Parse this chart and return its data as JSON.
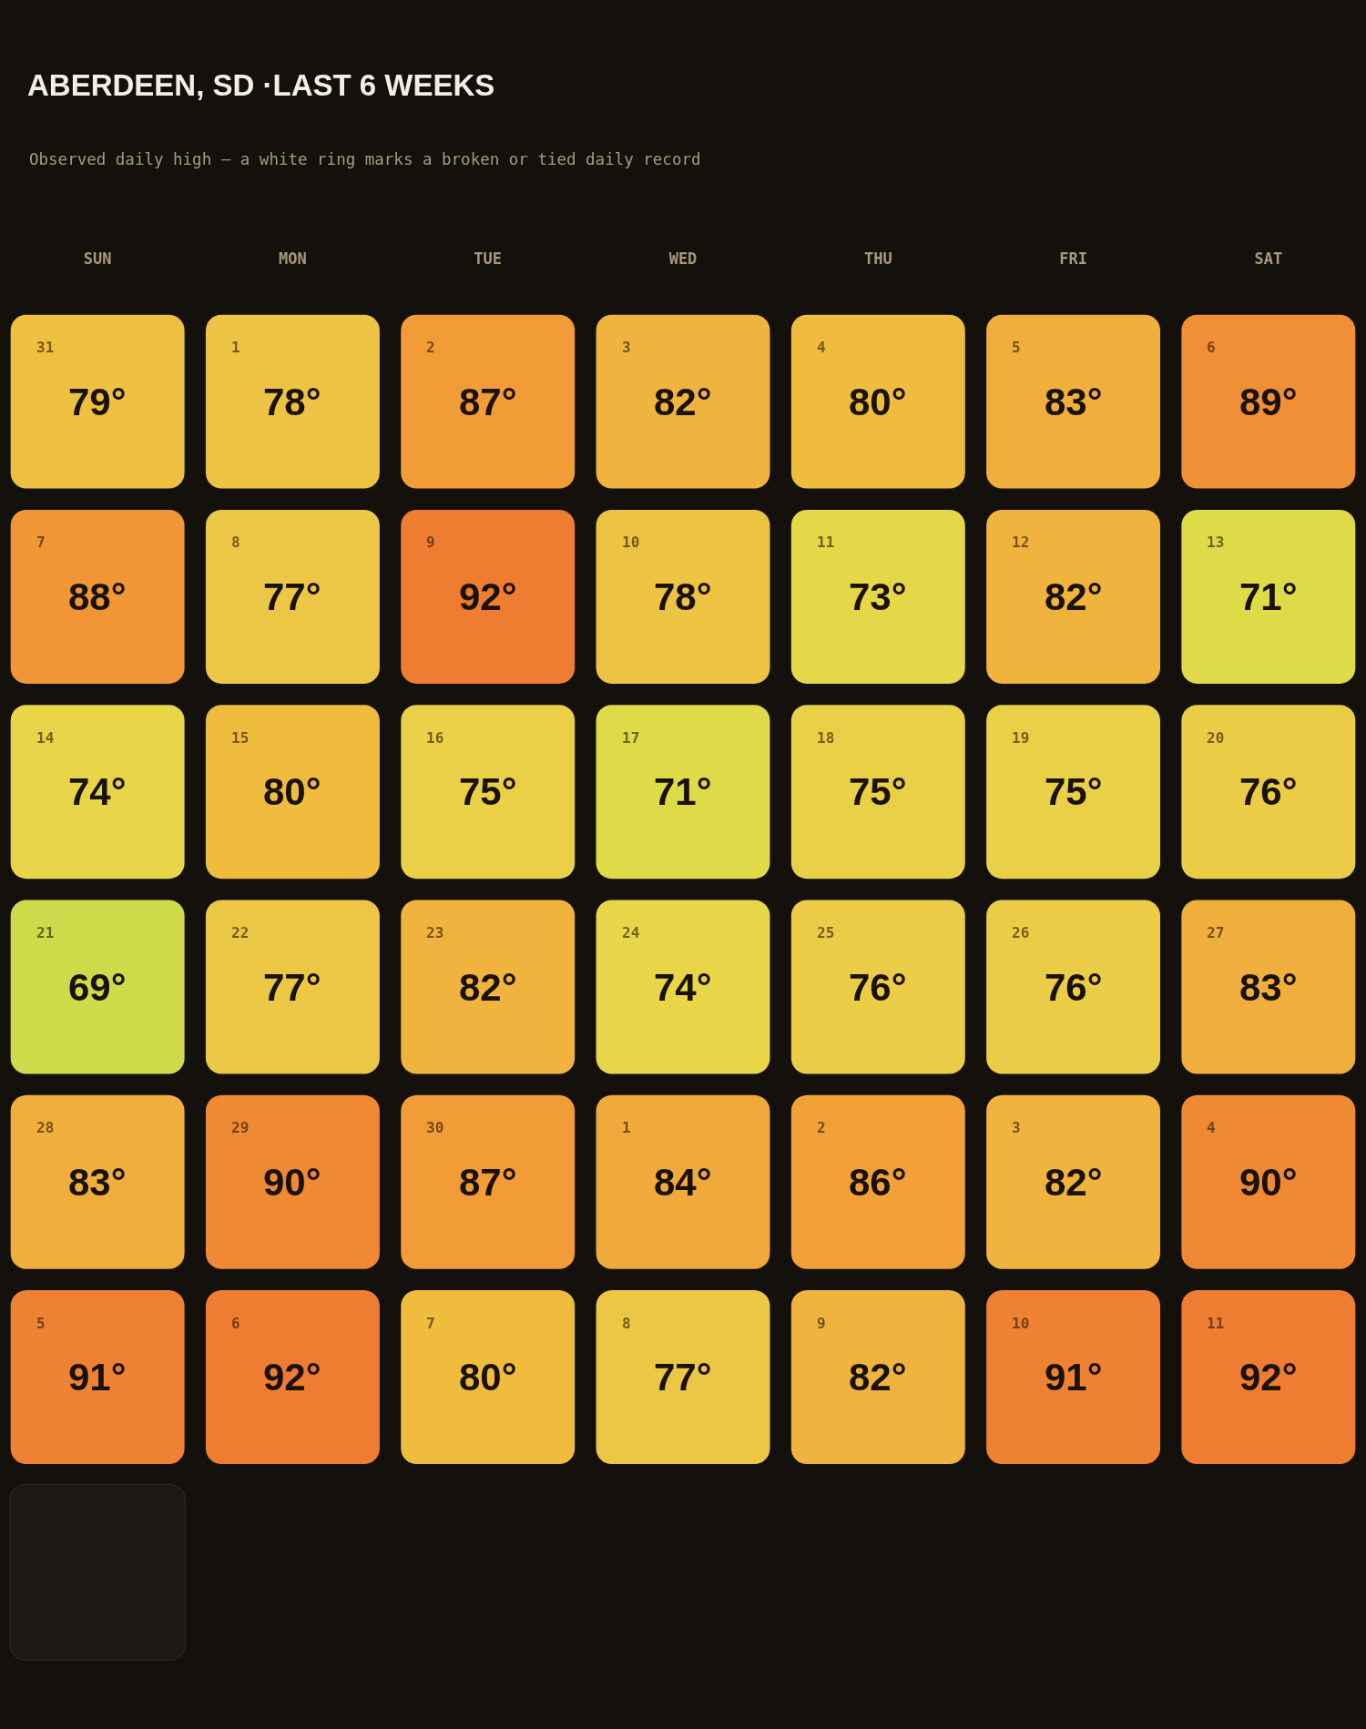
{
  "chart_data": {
    "type": "heatmap",
    "title": "ABERDEEN, SD ·LAST 6 WEEKS",
    "subtitle": "Observed daily high — a white ring marks a broken or tied daily record",
    "categories": [
      "SUN",
      "MON",
      "TUE",
      "WED",
      "THU",
      "FRI",
      "SAT"
    ],
    "y_categories": [
      null,
      null,
      null,
      null,
      null,
      null
    ],
    "cells": [
      [
        79,
        78,
        87,
        82,
        80,
        83,
        89
      ],
      [
        88,
        77,
        92,
        78,
        73,
        82,
        71
      ],
      [
        74,
        80,
        75,
        71,
        75,
        75,
        76
      ],
      [
        69,
        77,
        82,
        74,
        76,
        76,
        83
      ],
      [
        83,
        90,
        87,
        84,
        86,
        82,
        90
      ],
      [
        91,
        92,
        80,
        77,
        82,
        91,
        92
      ]
    ],
    "cell_labels": [
      [
        "79°",
        "78°",
        "87°",
        "82°",
        "80°",
        "83°",
        "89°"
      ],
      [
        "88°",
        "77°",
        "92°",
        "78°",
        "73°",
        "82°",
        "71°"
      ],
      [
        "74°",
        "80°",
        "75°",
        "71°",
        "75°",
        "75°",
        "76°"
      ],
      [
        "69°",
        "77°",
        "82°",
        "74°",
        "76°",
        "76°",
        "83°"
      ],
      [
        "83°",
        "90°",
        "87°",
        "84°",
        "86°",
        "82°",
        "90°"
      ],
      [
        "91°",
        "92°",
        "80°",
        "77°",
        "82°",
        "91°",
        "92°"
      ]
    ],
    "annotations": [
      "31",
      "1",
      "2",
      "3",
      "4",
      "5",
      "6",
      "7",
      "8",
      "9",
      "10",
      "11",
      "12",
      "13",
      "14",
      "15",
      "16",
      "17",
      "18",
      "19",
      "20",
      "21",
      "22",
      "23",
      "24",
      "25",
      "26",
      "27",
      "28",
      "29",
      "30",
      "1",
      "2",
      "3",
      "4",
      "5",
      "6",
      "7",
      "8",
      "9",
      "10",
      "11"
    ]
  }
}
